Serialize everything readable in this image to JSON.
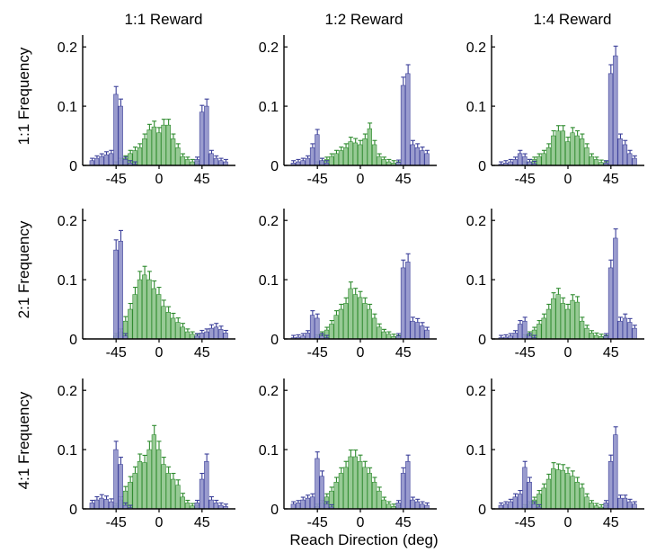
{
  "chart_data": {
    "type": "bar",
    "layout": "3x3 grid of histogram panels",
    "column_titles": [
      "1:1 Reward",
      "1:2 Reward",
      "1:4 Reward"
    ],
    "row_titles": [
      "1:1 Frequency",
      "2:1 Frequency",
      "4:1 Frequency"
    ],
    "xlabel": "Reach Direction (deg)",
    "xticks": [
      "-45",
      "0",
      "45"
    ],
    "yticks": [
      "0",
      "0.1",
      "0.2"
    ],
    "xlim": [
      -80,
      80
    ],
    "ylim": [
      0,
      0.22
    ],
    "bin_width_deg": 5,
    "bin_centers": [
      -70,
      -65,
      -60,
      -55,
      -50,
      -45,
      -40,
      -35,
      -30,
      -25,
      -20,
      -15,
      -10,
      -5,
      0,
      5,
      10,
      15,
      20,
      25,
      30,
      35,
      40,
      45,
      50,
      55,
      60,
      65,
      70
    ],
    "colors": {
      "blue_bar": "#8f91c9",
      "blue_edge": "#3b3f99",
      "green_bar": "#8cc48a",
      "green_edge": "#2e8b2e"
    },
    "panels": [
      [
        {
          "row": "1:1 Frequency",
          "col": "1:1 Reward",
          "blue": [
            0.008,
            0.012,
            0.015,
            0.018,
            0.02,
            0.12,
            0.1,
            0.01,
            0.004,
            0.002,
            0,
            0,
            0,
            0,
            0,
            0,
            0,
            0,
            0,
            0,
            0,
            0,
            0.01,
            0.09,
            0.1,
            0.02,
            0.012,
            0.008,
            0.006
          ],
          "green": [
            0,
            0,
            0,
            0,
            0,
            0.002,
            0.008,
            0.012,
            0.02,
            0.025,
            0.03,
            0.045,
            0.06,
            0.065,
            0.055,
            0.068,
            0.068,
            0.045,
            0.03,
            0.015,
            0.01,
            0.006,
            0.003,
            0,
            0,
            0,
            0,
            0,
            0
          ],
          "err": 0.012
        },
        {
          "row": "1:1 Frequency",
          "col": "1:2 Reward",
          "blue": [
            0.004,
            0.006,
            0.008,
            0.012,
            0.03,
            0.052,
            0.008,
            0.004,
            0,
            0,
            0,
            0,
            0,
            0,
            0,
            0,
            0,
            0,
            0,
            0,
            0,
            0,
            0.005,
            0.135,
            0.155,
            0.035,
            0.03,
            0.025,
            0.02
          ],
          "green": [
            0,
            0,
            0,
            0,
            0,
            0.002,
            0.008,
            0.01,
            0.015,
            0.02,
            0.025,
            0.03,
            0.04,
            0.038,
            0.035,
            0.045,
            0.062,
            0.035,
            0.015,
            0.01,
            0.006,
            0.004,
            0.002,
            0,
            0,
            0,
            0,
            0,
            0
          ],
          "err": 0.012
        },
        {
          "row": "1:1 Frequency",
          "col": "1:4 Reward",
          "blue": [
            0.002,
            0.004,
            0.006,
            0.01,
            0.02,
            0.015,
            0.006,
            0.003,
            0,
            0,
            0,
            0,
            0,
            0,
            0,
            0,
            0,
            0,
            0,
            0,
            0,
            0,
            0.004,
            0.155,
            0.185,
            0.045,
            0.035,
            0.02,
            0.012
          ],
          "green": [
            0,
            0,
            0,
            0,
            0,
            0.002,
            0.006,
            0.01,
            0.015,
            0.02,
            0.03,
            0.05,
            0.058,
            0.058,
            0.04,
            0.055,
            0.05,
            0.045,
            0.03,
            0.015,
            0.01,
            0.005,
            0.002,
            0,
            0,
            0,
            0,
            0,
            0
          ],
          "err": 0.012
        }
      ],
      [
        {
          "row": "2:1 Frequency",
          "col": "1:1 Reward",
          "blue": [
            0,
            0,
            0,
            0,
            0,
            0.15,
            0.165,
            0.005,
            0,
            0,
            0,
            0,
            0,
            0,
            0,
            0,
            0,
            0,
            0,
            0,
            0,
            0,
            0.005,
            0.01,
            0.012,
            0.018,
            0.02,
            0.016,
            0.01
          ],
          "green": [
            0,
            0,
            0,
            0,
            0,
            0.005,
            0.012,
            0.03,
            0.05,
            0.075,
            0.1,
            0.108,
            0.1,
            0.085,
            0.075,
            0.055,
            0.045,
            0.035,
            0.028,
            0.02,
            0.012,
            0.008,
            0.004,
            0,
            0,
            0,
            0,
            0,
            0
          ],
          "err": 0.014
        },
        {
          "row": "2:1 Frequency",
          "col": "1:2 Reward",
          "blue": [
            0.002,
            0.003,
            0.005,
            0.01,
            0.04,
            0.035,
            0.005,
            0.002,
            0,
            0,
            0,
            0,
            0,
            0,
            0,
            0,
            0,
            0,
            0,
            0,
            0,
            0,
            0.005,
            0.12,
            0.13,
            0.03,
            0.028,
            0.022,
            0.015
          ],
          "green": [
            0,
            0,
            0,
            0,
            0,
            0.003,
            0.008,
            0.015,
            0.025,
            0.04,
            0.05,
            0.06,
            0.085,
            0.075,
            0.07,
            0.06,
            0.05,
            0.035,
            0.02,
            0.012,
            0.008,
            0.004,
            0.002,
            0,
            0,
            0,
            0,
            0,
            0
          ],
          "err": 0.012
        },
        {
          "row": "2:1 Frequency",
          "col": "1:4 Reward",
          "blue": [
            0.002,
            0.003,
            0.005,
            0.01,
            0.025,
            0.03,
            0.005,
            0.002,
            0,
            0,
            0,
            0,
            0,
            0,
            0,
            0,
            0,
            0,
            0,
            0,
            0,
            0,
            0.005,
            0.12,
            0.17,
            0.03,
            0.035,
            0.028,
            0.018
          ],
          "green": [
            0,
            0,
            0,
            0,
            0,
            0.003,
            0.008,
            0.015,
            0.025,
            0.035,
            0.05,
            0.068,
            0.075,
            0.06,
            0.05,
            0.065,
            0.062,
            0.03,
            0.018,
            0.01,
            0.006,
            0.004,
            0.002,
            0,
            0,
            0,
            0,
            0,
            0
          ],
          "err": 0.012
        }
      ],
      [
        {
          "row": "4:1 Frequency",
          "col": "1:1 Reward",
          "blue": [
            0.01,
            0.015,
            0.018,
            0.016,
            0.012,
            0.1,
            0.075,
            0.006,
            0.002,
            0,
            0,
            0,
            0,
            0,
            0,
            0,
            0,
            0,
            0,
            0,
            0,
            0,
            0.01,
            0.05,
            0.08,
            0.015,
            0.01,
            0.006,
            0.004
          ],
          "green": [
            0,
            0,
            0,
            0,
            0,
            0.005,
            0.015,
            0.03,
            0.045,
            0.06,
            0.08,
            0.078,
            0.1,
            0.125,
            0.1,
            0.075,
            0.06,
            0.05,
            0.04,
            0.02,
            0.01,
            0.005,
            0.002,
            0,
            0,
            0,
            0,
            0,
            0
          ],
          "err": 0.014
        },
        {
          "row": "4:1 Frequency",
          "col": "1:2 Reward",
          "blue": [
            0.008,
            0.01,
            0.015,
            0.018,
            0.02,
            0.085,
            0.055,
            0.008,
            0.003,
            0,
            0,
            0,
            0,
            0,
            0,
            0,
            0,
            0,
            0,
            0,
            0,
            0,
            0.01,
            0.06,
            0.08,
            0.015,
            0.012,
            0.008,
            0.006
          ],
          "green": [
            0,
            0,
            0,
            0,
            0,
            0.004,
            0.01,
            0.02,
            0.03,
            0.045,
            0.06,
            0.07,
            0.088,
            0.088,
            0.08,
            0.07,
            0.06,
            0.045,
            0.03,
            0.015,
            0.008,
            0.004,
            0.002,
            0,
            0,
            0,
            0,
            0,
            0
          ],
          "err": 0.012
        },
        {
          "row": "4:1 Frequency",
          "col": "1:4 Reward",
          "blue": [
            0.006,
            0.008,
            0.012,
            0.02,
            0.025,
            0.07,
            0.045,
            0.008,
            0.003,
            0,
            0,
            0,
            0,
            0,
            0,
            0,
            0,
            0,
            0,
            0,
            0,
            0,
            0.01,
            0.08,
            0.125,
            0.018,
            0.018,
            0.012,
            0.008
          ],
          "green": [
            0,
            0,
            0,
            0,
            0,
            0.003,
            0.008,
            0.015,
            0.025,
            0.035,
            0.05,
            0.068,
            0.066,
            0.065,
            0.06,
            0.055,
            0.045,
            0.035,
            0.02,
            0.01,
            0.005,
            0.003,
            0.002,
            0,
            0,
            0,
            0,
            0,
            0
          ],
          "err": 0.012
        }
      ]
    ]
  }
}
